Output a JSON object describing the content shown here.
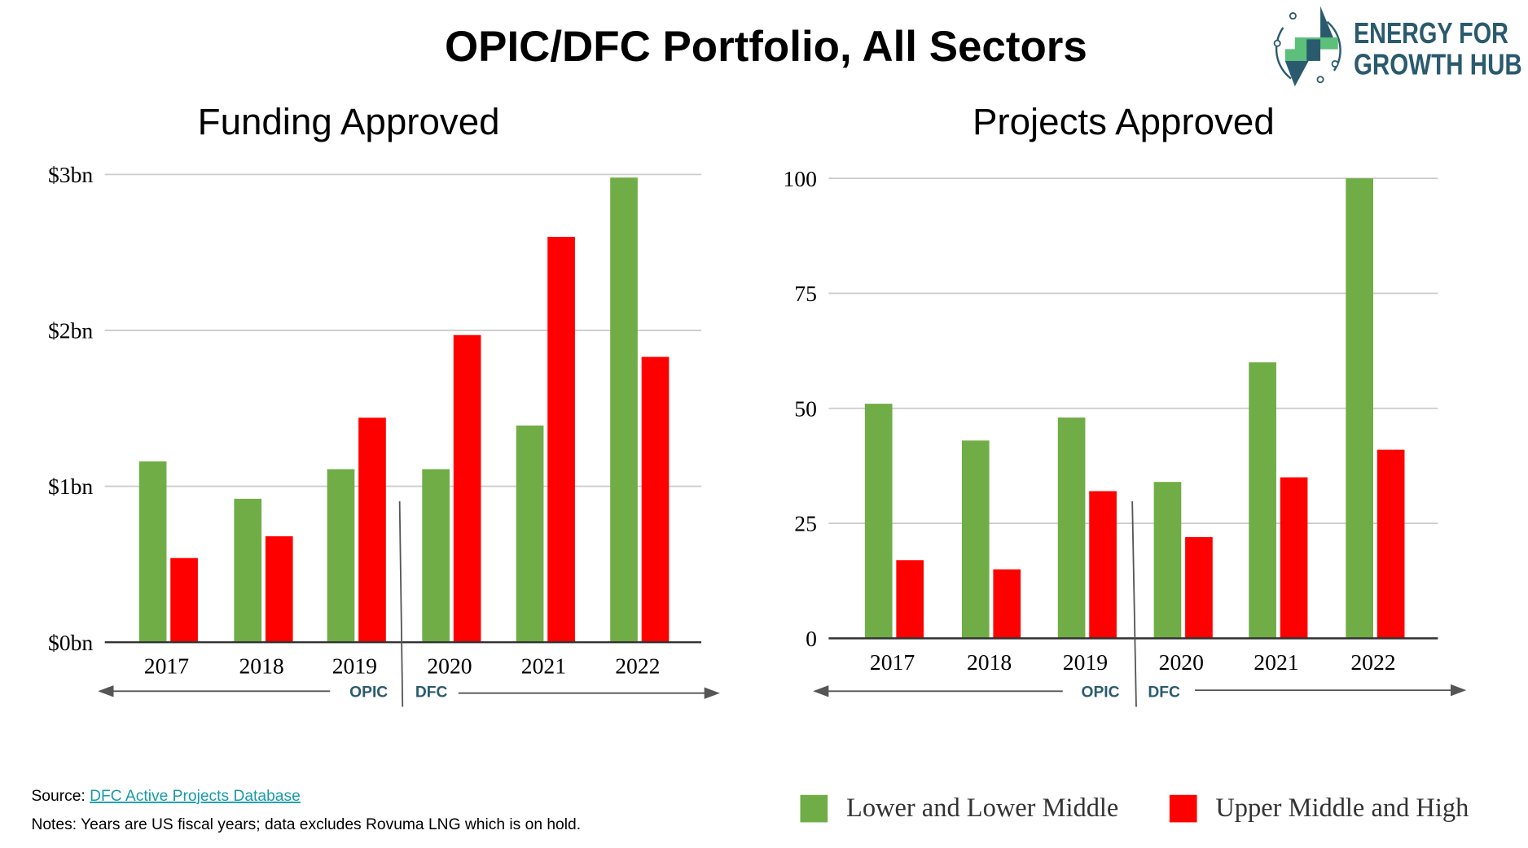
{
  "title": "OPIC/DFC Portfolio, All Sectors",
  "logo": {
    "line1": "ENERGY FOR",
    "line2": "GROWTH HUB",
    "color": "#2a5a6e",
    "accent": "#5cbf7a"
  },
  "colors": {
    "lower": "#70ad47",
    "upper": "#ff0000",
    "era_label": "#2a5a6e",
    "link": "#1a9aa8"
  },
  "legend": [
    {
      "name": "Lower and Lower Middle",
      "color": "#70ad47"
    },
    {
      "name": "Upper Middle and High",
      "color": "#ff0000"
    }
  ],
  "era": {
    "left": "OPIC",
    "right": "DFC"
  },
  "footer": {
    "source_label": "Source: ",
    "source_link": "DFC Active Projects Database",
    "notes": "Notes: Years are US fiscal years; data excludes Rovuma LNG which is on hold."
  },
  "chart_data": [
    {
      "type": "bar",
      "title": "Funding Approved",
      "categories": [
        "2017",
        "2018",
        "2019",
        "2020",
        "2021",
        "2022"
      ],
      "ylim": [
        0,
        3
      ],
      "yticks": [
        0,
        1,
        2,
        3
      ],
      "ytick_labels": [
        "$0bn",
        "$1bn",
        "$2bn",
        "$3bn"
      ],
      "grid": true,
      "series": [
        {
          "name": "Lower and Lower Middle",
          "values": [
            1.16,
            0.92,
            1.11,
            1.11,
            1.39,
            2.98
          ]
        },
        {
          "name": "Upper Middle and High",
          "values": [
            0.54,
            0.68,
            1.44,
            1.97,
            2.6,
            1.83
          ]
        }
      ]
    },
    {
      "type": "bar",
      "title": "Projects Approved",
      "categories": [
        "2017",
        "2018",
        "2019",
        "2020",
        "2021",
        "2022"
      ],
      "ylim": [
        0,
        100
      ],
      "yticks": [
        0,
        25,
        50,
        75,
        100
      ],
      "ytick_labels": [
        "0",
        "25",
        "50",
        "75",
        "100"
      ],
      "grid": true,
      "series": [
        {
          "name": "Lower and Lower Middle",
          "values": [
            51,
            43,
            48,
            34,
            60,
            100
          ]
        },
        {
          "name": "Upper Middle and High",
          "values": [
            17,
            15,
            32,
            22,
            35,
            41
          ]
        }
      ]
    }
  ]
}
